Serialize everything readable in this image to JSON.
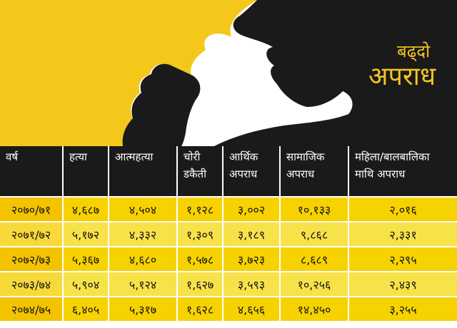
{
  "title": {
    "line1": "बढ्दो",
    "line2": "अपराध"
  },
  "colors": {
    "accent": "#f4c51e",
    "header_bg": "#1a1a1a",
    "row_odd": "#f6d200",
    "row_even": "#f8e24a"
  },
  "table": {
    "headers": [
      {
        "line1": "वर्ष",
        "line2": ""
      },
      {
        "line1": "हत्या",
        "line2": ""
      },
      {
        "line1": "आत्महत्या",
        "line2": ""
      },
      {
        "line1": "चोरी",
        "line2": "डकैती"
      },
      {
        "line1": "आर्थिक",
        "line2": "अपराध"
      },
      {
        "line1": "सामाजिक",
        "line2": "अपराध"
      },
      {
        "line1": "महिला/बालबालिका",
        "line2": "माथि अपराध"
      }
    ],
    "rows": [
      [
        "२०७०/७१",
        "४,६८७",
        "४,५०४",
        "१,१२८",
        "३,००२",
        "१०,१३३",
        "२,०१६"
      ],
      [
        "२०७१/७२",
        "५,१७२",
        "४,३३२",
        "१,३०९",
        "३,१८९",
        "९,८६८",
        "२,३३१"
      ],
      [
        "२०७२/७३",
        "५,३६७",
        "४,६८०",
        "१,५७८",
        "३,७२३",
        "८,६८९",
        "२,२९५"
      ],
      [
        "२०७३/७४",
        "५,९०४",
        "५,१२४",
        "१,६२७",
        "३,५९३",
        "१०,२५६",
        "२,४३९"
      ],
      [
        "२०७४/७५",
        "६,४०५",
        "५,३१७",
        "१,६२८",
        "४,६५६",
        "१४,४५०",
        "३,२५५"
      ]
    ]
  }
}
